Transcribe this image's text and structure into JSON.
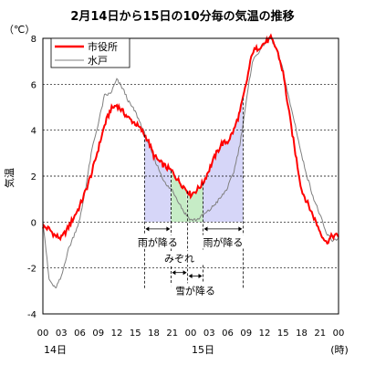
{
  "chart_data": {
    "type": "line",
    "title": "2月14日から15日の10分毎の気温の推移",
    "ylabel": "気温",
    "yunit": "（℃）",
    "xunit": "(時)",
    "ylim": [
      -4,
      8
    ],
    "y_ticks": [
      "-4",
      "-2",
      "0",
      "2",
      "4",
      "6",
      "8"
    ],
    "x_hours_range": [
      0,
      48
    ],
    "x_ticks": [
      "00",
      "03",
      "06",
      "09",
      "12",
      "15",
      "18",
      "21",
      "00",
      "03",
      "06",
      "09",
      "12",
      "15",
      "18",
      "21",
      "00"
    ],
    "day_labels": [
      {
        "text": "14日",
        "hour": 2
      },
      {
        "text": "15日",
        "hour": 26
      }
    ],
    "grid": "horizontal-dashed",
    "legend_position": "top-left",
    "series": [
      {
        "name": "市役所",
        "color": "#ff0000",
        "points": [
          [
            0,
            -0.2
          ],
          [
            1,
            -0.3
          ],
          [
            2,
            -0.6
          ],
          [
            3,
            -0.7
          ],
          [
            4,
            -0.3
          ],
          [
            5,
            0.2
          ],
          [
            6,
            0.7
          ],
          [
            7,
            1.4
          ],
          [
            8,
            2.2
          ],
          [
            9,
            3.2
          ],
          [
            10,
            4.2
          ],
          [
            11,
            4.9
          ],
          [
            12,
            5.1
          ],
          [
            13,
            4.8
          ],
          [
            14,
            4.5
          ],
          [
            15,
            4.3
          ],
          [
            16,
            4.0
          ],
          [
            17,
            3.6
          ],
          [
            18,
            2.9
          ],
          [
            19,
            2.6
          ],
          [
            20,
            2.4
          ],
          [
            21,
            2.2
          ],
          [
            22,
            1.8
          ],
          [
            23,
            1.5
          ],
          [
            24,
            1.2
          ],
          [
            25,
            1.4
          ],
          [
            26,
            1.7
          ],
          [
            27,
            2.3
          ],
          [
            28,
            2.9
          ],
          [
            29,
            3.4
          ],
          [
            30,
            3.5
          ],
          [
            31,
            4.0
          ],
          [
            32,
            4.8
          ],
          [
            33,
            6.0
          ],
          [
            34,
            7.4
          ],
          [
            35,
            7.6
          ],
          [
            36,
            7.8
          ],
          [
            37,
            8.0
          ],
          [
            38,
            7.5
          ],
          [
            39,
            6.5
          ],
          [
            40,
            4.7
          ],
          [
            41,
            3.0
          ],
          [
            42,
            1.4
          ],
          [
            43,
            0.8
          ],
          [
            44,
            0.2
          ],
          [
            45,
            -0.4
          ],
          [
            46,
            -0.9
          ],
          [
            47,
            -0.6
          ],
          [
            48,
            -0.6
          ]
        ]
      },
      {
        "name": "水戸",
        "color": "#808080",
        "points": [
          [
            0,
            0.1
          ],
          [
            1,
            -2.5
          ],
          [
            2,
            -2.9
          ],
          [
            3,
            -2.4
          ],
          [
            4,
            -1.3
          ],
          [
            5,
            -0.6
          ],
          [
            6,
            0.1
          ],
          [
            7,
            1.6
          ],
          [
            8,
            3.2
          ],
          [
            9,
            4.3
          ],
          [
            10,
            5.5
          ],
          [
            11,
            5.6
          ],
          [
            12,
            6.2
          ],
          [
            13,
            5.8
          ],
          [
            14,
            5.2
          ],
          [
            15,
            4.8
          ],
          [
            16,
            4.2
          ],
          [
            17,
            3.5
          ],
          [
            18,
            2.8
          ],
          [
            19,
            2.2
          ],
          [
            20,
            1.6
          ],
          [
            21,
            1.4
          ],
          [
            22,
            0.9
          ],
          [
            23,
            0.4
          ],
          [
            24,
            0.1
          ],
          [
            25,
            0.1
          ],
          [
            26,
            0.3
          ],
          [
            27,
            0.5
          ],
          [
            28,
            0.8
          ],
          [
            29,
            1.1
          ],
          [
            30,
            1.5
          ],
          [
            31,
            2.2
          ],
          [
            32,
            3.4
          ],
          [
            33,
            5.2
          ],
          [
            34,
            7.0
          ],
          [
            35,
            7.4
          ],
          [
            36,
            7.8
          ],
          [
            37,
            8.0
          ],
          [
            38,
            7.5
          ],
          [
            39,
            6.6
          ],
          [
            40,
            5.3
          ],
          [
            41,
            4.2
          ],
          [
            42,
            2.9
          ],
          [
            43,
            1.9
          ],
          [
            44,
            1.0
          ],
          [
            45,
            0.3
          ],
          [
            46,
            -0.5
          ],
          [
            47,
            -0.8
          ],
          [
            48,
            -0.7
          ]
        ]
      }
    ],
    "annotations": [
      {
        "text": "雨が降る",
        "from_hour": 16.5,
        "to_hour": 20.8,
        "label_y": -1.0,
        "color": "#d6d6f8"
      },
      {
        "text": "みぞれ",
        "from_hour": 20.8,
        "to_hour": 23.5,
        "label_y": -1.7,
        "color": "#c6ecc6"
      },
      {
        "text": "雪が降る",
        "from_hour": 23.5,
        "to_hour": 26.0,
        "label_y": -3.1,
        "color": "#c6ecc6"
      },
      {
        "text": "雨が降る",
        "from_hour": 26.0,
        "to_hour": 32.5,
        "label_y": -1.0,
        "color": "#d6d6f8"
      }
    ]
  }
}
